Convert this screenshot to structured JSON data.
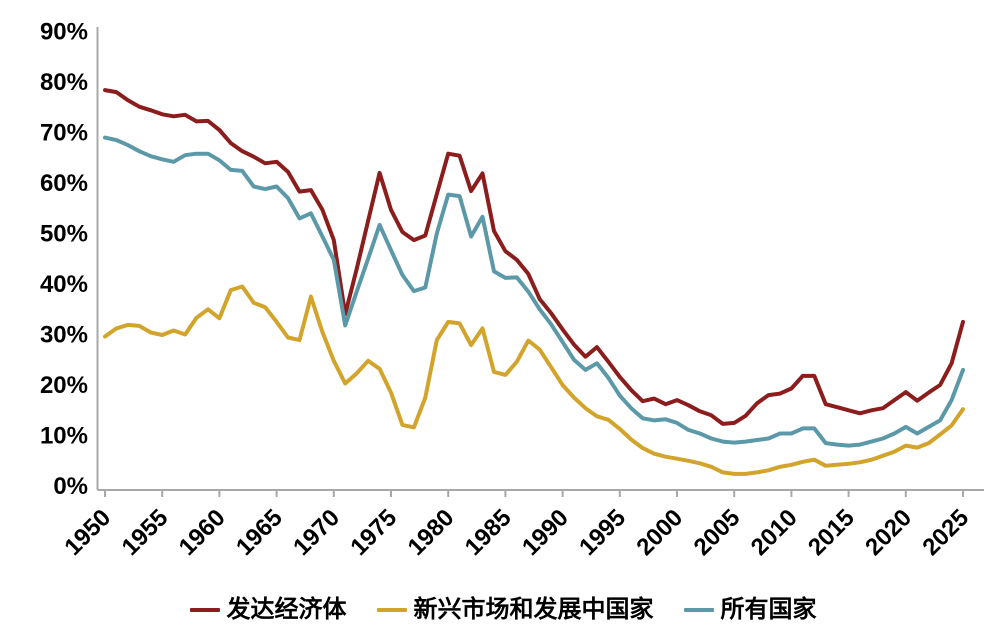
{
  "chart_data": {
    "type": "line",
    "title": "",
    "xlabel": "",
    "ylabel": "",
    "y_unit": "%",
    "grid": false,
    "legend_position": "bottom",
    "axis_color": "#a8a8a8",
    "text_color": "#000000",
    "x_range": [
      1950,
      2025
    ],
    "ylim": [
      0,
      90
    ],
    "x_ticks": [
      1950,
      1955,
      1960,
      1965,
      1970,
      1975,
      1980,
      1985,
      1990,
      1995,
      2000,
      2005,
      2010,
      2015,
      2020,
      2025
    ],
    "y_ticks": [
      0,
      10,
      20,
      30,
      40,
      50,
      60,
      70,
      80,
      90
    ],
    "years": [
      1950,
      1951,
      1952,
      1953,
      1954,
      1955,
      1956,
      1957,
      1958,
      1959,
      1960,
      1961,
      1962,
      1963,
      1964,
      1965,
      1966,
      1967,
      1968,
      1969,
      1970,
      1971,
      1972,
      1973,
      1974,
      1975,
      1976,
      1977,
      1978,
      1979,
      1980,
      1981,
      1982,
      1983,
      1984,
      1985,
      1986,
      1987,
      1988,
      1989,
      1990,
      1991,
      1992,
      1993,
      1994,
      1995,
      1996,
      1997,
      1998,
      1999,
      2000,
      2001,
      2002,
      2003,
      2004,
      2005,
      2006,
      2007,
      2008,
      2009,
      2010,
      2011,
      2012,
      2013,
      2014,
      2015,
      2016,
      2017,
      2018,
      2019,
      2020,
      2021,
      2022,
      2023,
      2024,
      2025
    ],
    "series": [
      {
        "name": "发达经济体",
        "color": "#8b1d1d",
        "values": [
          78.4,
          78.0,
          76.4,
          75.1,
          74.4,
          73.6,
          73.2,
          73.5,
          72.2,
          72.3,
          70.5,
          67.9,
          66.3,
          65.2,
          63.9,
          64.2,
          62.2,
          58.3,
          58.6,
          54.7,
          48.7,
          34.0,
          43.0,
          52.5,
          62.0,
          54.7,
          50.3,
          48.7,
          49.6,
          57.8,
          65.8,
          65.4,
          58.4,
          61.9,
          50.5,
          46.5,
          44.8,
          42.0,
          37.0,
          34.2,
          31.0,
          28.0,
          25.6,
          27.5,
          24.6,
          21.6,
          19.0,
          16.8,
          17.3,
          16.2,
          17.0,
          16.0,
          14.8,
          14.0,
          12.3,
          12.5,
          13.9,
          16.4,
          18.0,
          18.3,
          19.3,
          21.8,
          21.8,
          16.2,
          15.6,
          15.0,
          14.4,
          15.0,
          15.4,
          17.0,
          18.6,
          16.9,
          18.5,
          20.0,
          24.3,
          32.5
        ]
      },
      {
        "name": "新兴市场和发展中国家",
        "color": "#d2a42b",
        "values": [
          29.6,
          31.2,
          31.9,
          31.7,
          30.4,
          29.9,
          30.8,
          30.0,
          33.3,
          35.0,
          33.2,
          38.8,
          39.5,
          36.3,
          35.4,
          32.5,
          29.4,
          28.9,
          37.5,
          30.5,
          24.8,
          20.3,
          22.3,
          24.8,
          23.2,
          18.5,
          12.1,
          11.6,
          17.5,
          28.9,
          32.5,
          32.2,
          27.9,
          31.2,
          22.6,
          22.0,
          24.6,
          28.8,
          27.0,
          23.5,
          20.0,
          17.5,
          15.4,
          13.8,
          13.1,
          11.3,
          9.2,
          7.5,
          6.4,
          5.8,
          5.4,
          5.0,
          4.5,
          3.8,
          2.7,
          2.4,
          2.4,
          2.7,
          3.1,
          3.8,
          4.2,
          4.8,
          5.2,
          4.0,
          4.2,
          4.4,
          4.7,
          5.2,
          6.0,
          6.8,
          8.0,
          7.6,
          8.5,
          10.2,
          12.0,
          15.2
        ]
      },
      {
        "name": "所有国家",
        "color": "#5c99a8",
        "values": [
          69.0,
          68.5,
          67.5,
          66.3,
          65.3,
          64.7,
          64.2,
          65.5,
          65.8,
          65.8,
          64.5,
          62.6,
          62.4,
          59.3,
          58.8,
          59.3,
          57.0,
          53.0,
          54.0,
          49.4,
          44.8,
          31.8,
          38.5,
          45.0,
          51.7,
          46.7,
          41.8,
          38.6,
          39.3,
          50.0,
          57.7,
          57.4,
          49.4,
          53.3,
          42.5,
          41.2,
          41.3,
          38.5,
          35.0,
          32.0,
          28.5,
          25.0,
          23.0,
          24.3,
          21.4,
          17.9,
          15.4,
          13.4,
          13.0,
          13.2,
          12.5,
          11.1,
          10.4,
          9.4,
          8.8,
          8.6,
          8.8,
          9.1,
          9.4,
          10.4,
          10.4,
          11.4,
          11.4,
          8.5,
          8.2,
          8.0,
          8.2,
          8.8,
          9.4,
          10.4,
          11.7,
          10.4,
          11.7,
          13.0,
          17.0,
          23.0
        ]
      }
    ]
  },
  "legend": {
    "items": [
      {
        "label": "发达经济体"
      },
      {
        "label": "新兴市场和发展中国家"
      },
      {
        "label": "所有国家"
      }
    ]
  }
}
